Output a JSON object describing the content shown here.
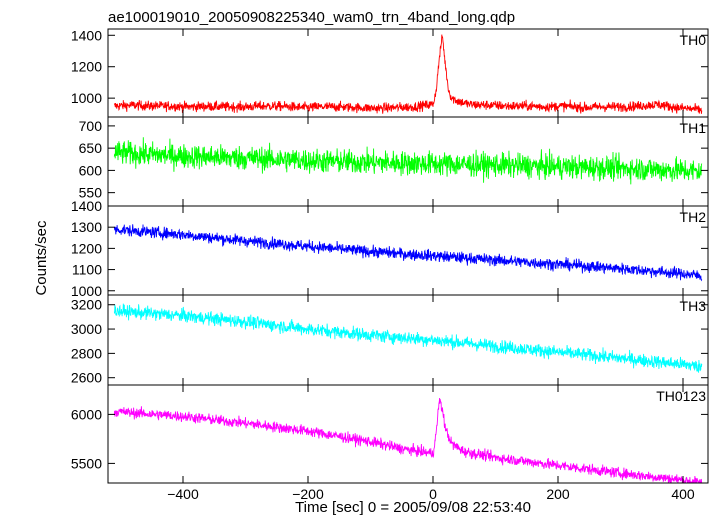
{
  "title": "ae100019010_20050908225340_wam0_trn_4band_long.qdp",
  "xlabel": "Time [sec] 0 = 2005/09/08 22:53:40",
  "ylabel": "Counts/sec",
  "chart_data": {
    "type": "line",
    "title": "ae100019010_20050908225340_wam0_trn_4band_long.qdp",
    "xlabel": "Time [sec] 0 = 2005/09/08 22:53:40",
    "ylabel": "Counts/sec",
    "xlim": [
      -520,
      440
    ],
    "xticks": [
      -400,
      -200,
      0,
      200,
      400
    ],
    "grid": false,
    "panels": [
      {
        "name": "TH0",
        "color": "#ff0000",
        "ylim": [
          880,
          1440
        ],
        "yticks": [
          1000,
          1200,
          1400
        ],
        "series": {
          "name": "TH0",
          "x": [
            -510,
            -480,
            -450,
            -420,
            -390,
            -360,
            -330,
            -300,
            -270,
            -240,
            -210,
            -180,
            -150,
            -120,
            -90,
            -60,
            -30,
            0,
            5,
            10,
            15,
            20,
            25,
            30,
            40,
            60,
            90,
            120,
            150,
            180,
            210,
            240,
            270,
            300,
            330,
            360,
            390,
            420,
            430
          ],
          "y": [
            950,
            955,
            950,
            950,
            945,
            948,
            945,
            945,
            950,
            948,
            940,
            945,
            945,
            940,
            935,
            940,
            945,
            960,
            1050,
            1250,
            1400,
            1200,
            1050,
            1000,
            980,
            960,
            955,
            950,
            950,
            945,
            950,
            940,
            945,
            945,
            950,
            960,
            940,
            930,
            920
          ]
        },
        "noise": 40
      },
      {
        "name": "TH1",
        "color": "#00ff00",
        "ylim": [
          520,
          720
        ],
        "yticks": [
          550,
          600,
          650,
          700
        ],
        "series": {
          "name": "TH1",
          "x": [
            -510,
            -400,
            -300,
            -200,
            -100,
            0,
            100,
            200,
            300,
            400,
            430
          ],
          "y": [
            640,
            632,
            628,
            622,
            618,
            615,
            612,
            608,
            605,
            600,
            598
          ]
        },
        "noise": 35
      },
      {
        "name": "TH2",
        "color": "#0000ff",
        "ylim": [
          980,
          1400
        ],
        "yticks": [
          1000,
          1100,
          1200,
          1300,
          1400
        ],
        "series": {
          "name": "TH2",
          "x": [
            -510,
            -400,
            -300,
            -200,
            -100,
            0,
            100,
            200,
            300,
            400,
            430
          ],
          "y": [
            1290,
            1265,
            1235,
            1210,
            1185,
            1165,
            1145,
            1125,
            1105,
            1080,
            1070
          ]
        },
        "noise": 35
      },
      {
        "name": "TH3",
        "color": "#00ffff",
        "ylim": [
          2540,
          3280
        ],
        "yticks": [
          2600,
          2800,
          3000,
          3200
        ],
        "series": {
          "name": "TH3",
          "x": [
            -510,
            -400,
            -300,
            -200,
            -100,
            0,
            100,
            200,
            300,
            400,
            430
          ],
          "y": [
            3150,
            3110,
            3060,
            3000,
            2950,
            2910,
            2860,
            2810,
            2760,
            2710,
            2690
          ]
        },
        "noise": 70
      },
      {
        "name": "TH0123",
        "color": "#ff00ff",
        "ylim": [
          5300,
          6300
        ],
        "yticks": [
          5500,
          6000
        ],
        "series": {
          "name": "TH0123",
          "x": [
            -510,
            -400,
            -300,
            -200,
            -100,
            -50,
            0,
            5,
            10,
            15,
            20,
            30,
            50,
            100,
            200,
            300,
            400,
            430
          ],
          "y": [
            6030,
            5980,
            5910,
            5830,
            5720,
            5650,
            5600,
            5800,
            6150,
            6050,
            5850,
            5700,
            5620,
            5560,
            5480,
            5400,
            5330,
            5300
          ]
        },
        "noise": 70
      }
    ]
  }
}
